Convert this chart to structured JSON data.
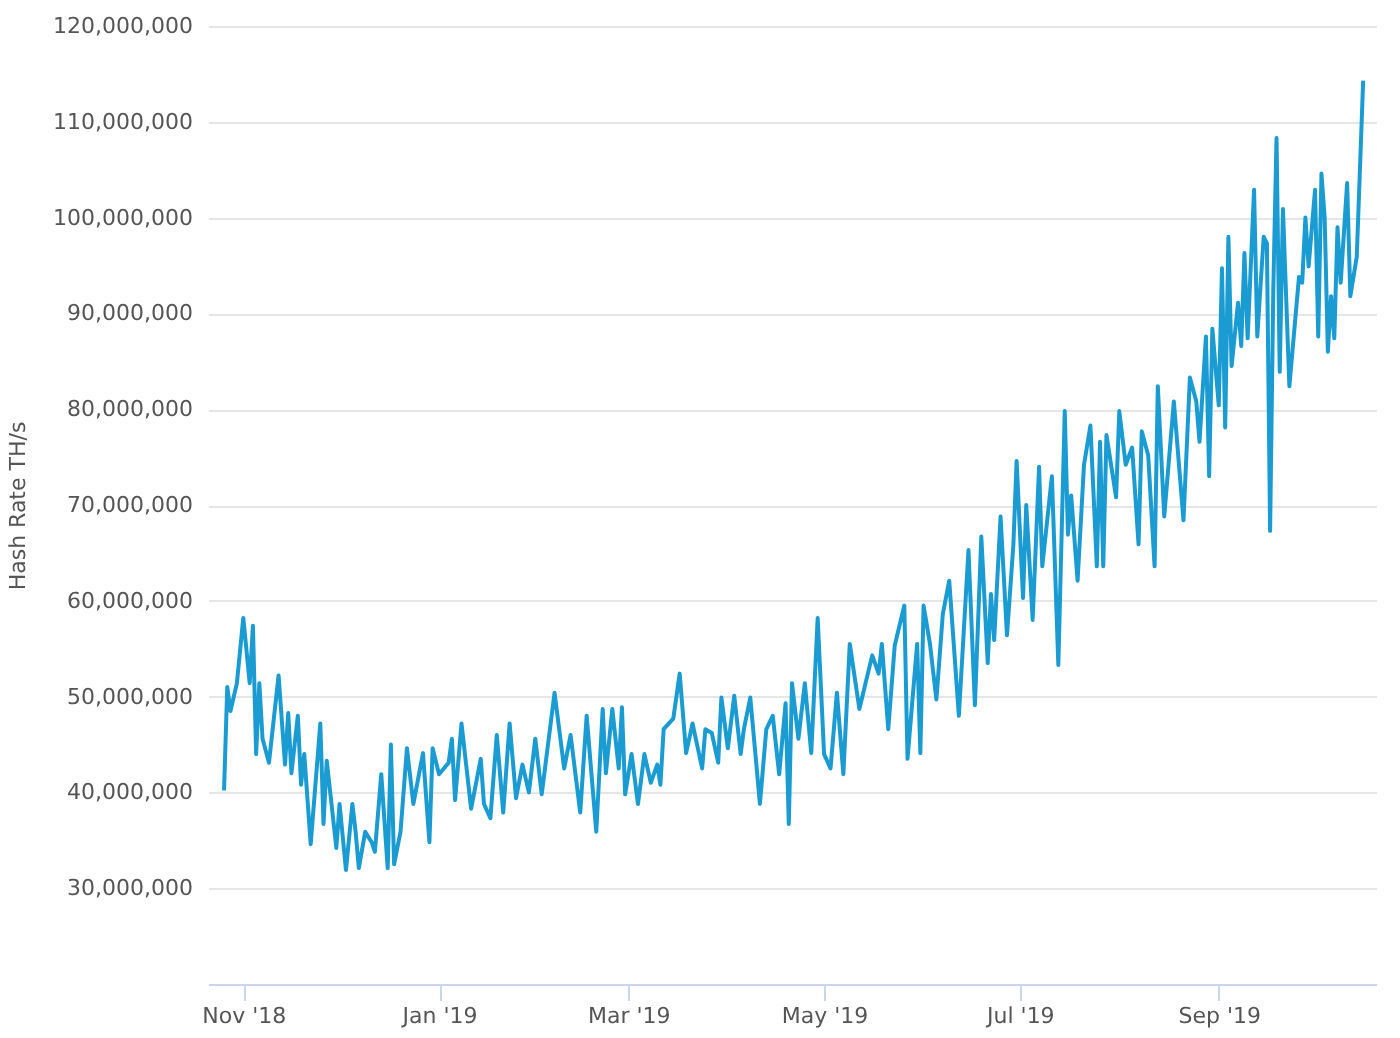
{
  "chart_data": {
    "type": "line",
    "ylabel": "Hash Rate TH/s",
    "x": [
      "2018-10-26",
      "2018-10-27",
      "2018-10-28",
      "2018-10-30",
      "2018-11-01",
      "2018-11-03",
      "2018-11-04",
      "2018-11-05",
      "2018-11-06",
      "2018-11-07",
      "2018-11-09",
      "2018-11-12",
      "2018-11-14",
      "2018-11-15",
      "2018-11-16",
      "2018-11-18",
      "2018-11-19",
      "2018-11-20",
      "2018-11-22",
      "2018-11-25",
      "2018-11-26",
      "2018-11-27",
      "2018-11-30",
      "2018-12-01",
      "2018-12-03",
      "2018-12-05",
      "2018-12-06",
      "2018-12-07",
      "2018-12-09",
      "2018-12-11",
      "2018-12-12",
      "2018-12-14",
      "2018-12-16",
      "2018-12-17",
      "2018-12-18",
      "2018-12-20",
      "2018-12-22",
      "2018-12-24",
      "2018-12-27",
      "2018-12-29",
      "2018-12-30",
      "2019-01-01",
      "2019-01-04",
      "2019-01-05",
      "2019-01-06",
      "2019-01-08",
      "2019-01-11",
      "2019-01-14",
      "2019-01-15",
      "2019-01-17",
      "2019-01-19",
      "2019-01-21",
      "2019-01-23",
      "2019-01-25",
      "2019-01-27",
      "2019-01-29",
      "2019-01-31",
      "2019-02-02",
      "2019-02-06",
      "2019-02-09",
      "2019-02-11",
      "2019-02-14",
      "2019-02-16",
      "2019-02-19",
      "2019-02-21",
      "2019-02-22",
      "2019-02-24",
      "2019-02-26",
      "2019-02-27",
      "2019-02-28",
      "2019-03-02",
      "2019-03-04",
      "2019-03-06",
      "2019-03-08",
      "2019-03-10",
      "2019-03-11",
      "2019-03-12",
      "2019-03-15",
      "2019-03-17",
      "2019-03-19",
      "2019-03-21",
      "2019-03-24",
      "2019-03-25",
      "2019-03-27",
      "2019-03-29",
      "2019-03-30",
      "2019-04-01",
      "2019-04-03",
      "2019-04-05",
      "2019-04-06",
      "2019-04-08",
      "2019-04-11",
      "2019-04-13",
      "2019-04-15",
      "2019-04-17",
      "2019-04-19",
      "2019-04-20",
      "2019-04-21",
      "2019-04-23",
      "2019-04-25",
      "2019-04-27",
      "2019-04-29",
      "2019-05-01",
      "2019-05-03",
      "2019-05-05",
      "2019-05-07",
      "2019-05-09",
      "2019-05-12",
      "2019-05-16",
      "2019-05-18",
      "2019-05-19",
      "2019-05-21",
      "2019-05-23",
      "2019-05-26",
      "2019-05-27",
      "2019-05-30",
      "2019-05-31",
      "2019-06-01",
      "2019-06-03",
      "2019-06-05",
      "2019-06-07",
      "2019-06-09",
      "2019-06-12",
      "2019-06-15",
      "2019-06-17",
      "2019-06-19",
      "2019-06-21",
      "2019-06-22",
      "2019-06-23",
      "2019-06-25",
      "2019-06-27",
      "2019-06-29",
      "2019-06-30",
      "2019-07-02",
      "2019-07-03",
      "2019-07-05",
      "2019-07-07",
      "2019-07-08",
      "2019-07-11",
      "2019-07-13",
      "2019-07-15",
      "2019-07-16",
      "2019-07-17",
      "2019-07-19",
      "2019-07-21",
      "2019-07-23",
      "2019-07-25",
      "2019-07-26",
      "2019-07-27",
      "2019-07-28",
      "2019-07-31",
      "2019-08-01",
      "2019-08-03",
      "2019-08-05",
      "2019-08-07",
      "2019-08-08",
      "2019-08-10",
      "2019-08-12",
      "2019-08-13",
      "2019-08-15",
      "2019-08-18",
      "2019-08-21",
      "2019-08-23",
      "2019-08-25",
      "2019-08-26",
      "2019-08-28",
      "2019-08-29",
      "2019-08-30",
      "2019-09-01",
      "2019-09-02",
      "2019-09-03",
      "2019-09-04",
      "2019-09-05",
      "2019-09-07",
      "2019-09-08",
      "2019-09-09",
      "2019-09-10",
      "2019-09-12",
      "2019-09-13",
      "2019-09-15",
      "2019-09-16",
      "2019-09-17",
      "2019-09-18",
      "2019-09-19",
      "2019-09-20",
      "2019-09-21",
      "2019-09-23",
      "2019-09-26",
      "2019-09-27",
      "2019-09-28",
      "2019-09-29",
      "2019-10-01",
      "2019-10-02",
      "2019-10-03",
      "2019-10-04",
      "2019-10-05",
      "2019-10-06",
      "2019-10-07",
      "2019-10-08",
      "2019-10-09",
      "2019-10-11",
      "2019-10-12",
      "2019-10-14",
      "2019-10-16"
    ],
    "series": [
      {
        "color": "#1a9bd2",
        "values": [
          40200000,
          51000000,
          48500000,
          51400000,
          58200000,
          51400000,
          57400000,
          44000000,
          51400000,
          45600000,
          43100000,
          52200000,
          42900000,
          48300000,
          42000000,
          48000000,
          40800000,
          44000000,
          34600000,
          47200000,
          36700000,
          43300000,
          34200000,
          38800000,
          31900000,
          38800000,
          35900000,
          32100000,
          35900000,
          34800000,
          33800000,
          41900000,
          32100000,
          45000000,
          32500000,
          35900000,
          44600000,
          38800000,
          44100000,
          34800000,
          44600000,
          41900000,
          43100000,
          45600000,
          39200000,
          47200000,
          38300000,
          43500000,
          38800000,
          37300000,
          46000000,
          37900000,
          47200000,
          39400000,
          42900000,
          40000000,
          45600000,
          39800000,
          50400000,
          42500000,
          46000000,
          37900000,
          48000000,
          35900000,
          48700000,
          42000000,
          48700000,
          42500000,
          48900000,
          39800000,
          44000000,
          38800000,
          44000000,
          41000000,
          42900000,
          40800000,
          46600000,
          47700000,
          52400000,
          44100000,
          47200000,
          42500000,
          46600000,
          46200000,
          43100000,
          49900000,
          44600000,
          50100000,
          44000000,
          46600000,
          49900000,
          38800000,
          46600000,
          48000000,
          41900000,
          49300000,
          36700000,
          51400000,
          45600000,
          51400000,
          44100000,
          58200000,
          44000000,
          42500000,
          50400000,
          41900000,
          55500000,
          48700000,
          54300000,
          52400000,
          55500000,
          46600000,
          55300000,
          59500000,
          43500000,
          55500000,
          44100000,
          59500000,
          55500000,
          49700000,
          58600000,
          62100000,
          48000000,
          65300000,
          49100000,
          66700000,
          53500000,
          60700000,
          55900000,
          68800000,
          56400000,
          65900000,
          74600000,
          60300000,
          70000000,
          58000000,
          74000000,
          63600000,
          73000000,
          53300000,
          79800000,
          66900000,
          71000000,
          62100000,
          74200000,
          78300000,
          63600000,
          76600000,
          63600000,
          77300000,
          70800000,
          79800000,
          74200000,
          76000000,
          65900000,
          77700000,
          75200000,
          63600000,
          82400000,
          68800000,
          80800000,
          68400000,
          83300000,
          80800000,
          76600000,
          87600000,
          73000000,
          88400000,
          80400000,
          94700000,
          78100000,
          98000000,
          84500000,
          91100000,
          86600000,
          96300000,
          87400000,
          102900000,
          87600000,
          98000000,
          97300000,
          67300000,
          92600000,
          108300000,
          83900000,
          100900000,
          82400000,
          93800000,
          93200000,
          100000000,
          94900000,
          102900000,
          87600000,
          104600000,
          100000000,
          86000000,
          91800000,
          87400000,
          99000000,
          93200000,
          103600000,
          91800000,
          95900000,
          114300000
        ]
      }
    ],
    "xlim": [
      "2018-10-21",
      "2019-10-20"
    ],
    "xticks": [
      {
        "value": "2018-11-01",
        "label": "Nov '18"
      },
      {
        "value": "2019-01-01",
        "label": "Jan '19"
      },
      {
        "value": "2019-03-01",
        "label": "Mar '19"
      },
      {
        "value": "2019-05-01",
        "label": "May '19"
      },
      {
        "value": "2019-07-01",
        "label": "Jul '19"
      },
      {
        "value": "2019-09-01",
        "label": "Sep '19"
      }
    ],
    "ylim": [
      20000000,
      120000000
    ],
    "yticks": [
      {
        "value": 30000000,
        "label": "30,000,000"
      },
      {
        "value": 40000000,
        "label": "40,000,000"
      },
      {
        "value": 50000000,
        "label": "50,000,000"
      },
      {
        "value": 60000000,
        "label": "60,000,000"
      },
      {
        "value": 70000000,
        "label": "70,000,000"
      },
      {
        "value": 80000000,
        "label": "80,000,000"
      },
      {
        "value": 90000000,
        "label": "90,000,000"
      },
      {
        "value": 100000000,
        "label": "100,000,000"
      },
      {
        "value": 110000000,
        "label": "110,000,000"
      },
      {
        "value": 120000000,
        "label": "120,000,000"
      }
    ],
    "grid": "y",
    "marker": "none",
    "line_style": "solid"
  }
}
